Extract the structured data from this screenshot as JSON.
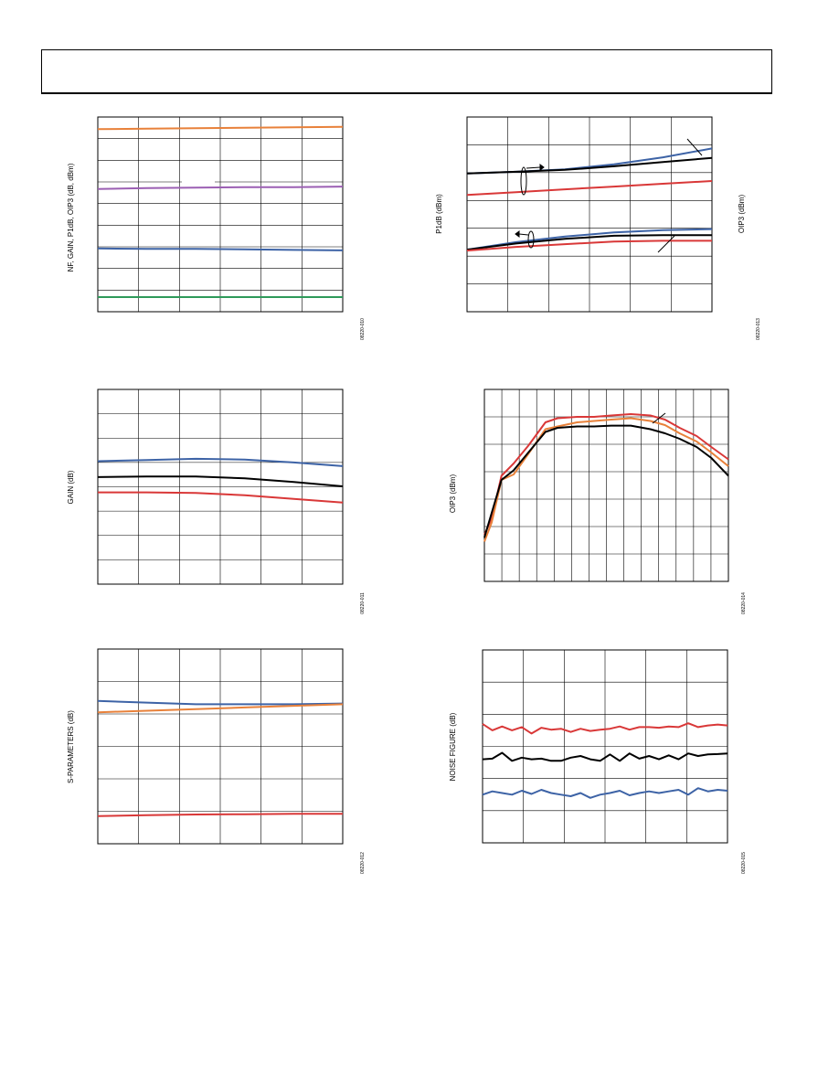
{
  "header": {
    "title": ""
  },
  "chart_data": [
    {
      "id": "c1",
      "type": "line",
      "ylabel": "NF, GAIN, P1dB, OIP3 (dB, dBm)",
      "fig_id": "08220-010",
      "xlim": [
        0,
        1
      ],
      "ylim": [
        0,
        40
      ],
      "series": [
        {
          "color": "#e8813a",
          "x": [
            0,
            0.2,
            0.4,
            0.6,
            0.8,
            1
          ],
          "y": [
            37.5,
            37.6,
            37.7,
            37.8,
            37.9,
            38.0
          ]
        },
        {
          "color": "#9b5fb3",
          "x": [
            0,
            0.2,
            0.4,
            0.6,
            0.8,
            1
          ],
          "y": [
            25.2,
            25.4,
            25.5,
            25.6,
            25.6,
            25.7
          ]
        },
        {
          "color": "#3d63a6",
          "x": [
            0,
            0.2,
            0.4,
            0.6,
            0.8,
            1
          ],
          "y": [
            13.0,
            12.9,
            12.9,
            12.8,
            12.7,
            12.6
          ]
        },
        {
          "color": "#2e9a5a",
          "x": [
            0,
            0.2,
            0.4,
            0.6,
            0.8,
            1
          ],
          "y": [
            3.0,
            3.0,
            3.0,
            3.0,
            3.0,
            3.0
          ]
        }
      ]
    },
    {
      "id": "c2",
      "type": "line",
      "ylabel": "P1dB (dBm)",
      "ylabel_right": "OIP3 (dBm)",
      "fig_id": "08220-013",
      "xlim": [
        0,
        1
      ],
      "ylim": [
        0,
        7
      ],
      "series": [
        {
          "color": "#3d63a6",
          "x": [
            0,
            0.2,
            0.4,
            0.6,
            0.8,
            1
          ],
          "y": [
            4.97,
            5.03,
            5.12,
            5.3,
            5.55,
            5.87
          ]
        },
        {
          "color": "#000000",
          "x": [
            0,
            0.2,
            0.4,
            0.6,
            0.8,
            1
          ],
          "y": [
            4.97,
            5.03,
            5.1,
            5.23,
            5.38,
            5.53
          ]
        },
        {
          "color": "#d93838",
          "x": [
            0,
            0.2,
            0.4,
            0.6,
            0.8,
            1
          ],
          "y": [
            4.2,
            4.3,
            4.4,
            4.5,
            4.6,
            4.7
          ]
        },
        {
          "color": "#3d63a6",
          "x": [
            0,
            0.2,
            0.4,
            0.6,
            0.8,
            1
          ],
          "y": [
            2.23,
            2.5,
            2.7,
            2.85,
            2.93,
            2.97
          ]
        },
        {
          "color": "#000000",
          "x": [
            0,
            0.2,
            0.4,
            0.6,
            0.8,
            1
          ],
          "y": [
            2.23,
            2.45,
            2.62,
            2.73,
            2.75,
            2.75
          ]
        },
        {
          "color": "#d93838",
          "x": [
            0,
            0.2,
            0.4,
            0.6,
            0.8,
            1
          ],
          "y": [
            2.2,
            2.33,
            2.43,
            2.52,
            2.55,
            2.55
          ]
        }
      ]
    },
    {
      "id": "c3",
      "type": "line",
      "ylabel": "GAIN (dB)",
      "fig_id": "08220-011",
      "xlim": [
        0,
        1
      ],
      "ylim": [
        0,
        8
      ],
      "series": [
        {
          "color": "#3d63a6",
          "x": [
            0,
            0.2,
            0.4,
            0.6,
            0.8,
            1
          ],
          "y": [
            5.05,
            5.1,
            5.15,
            5.12,
            5.0,
            4.85
          ]
        },
        {
          "color": "#000000",
          "x": [
            0,
            0.2,
            0.4,
            0.6,
            0.8,
            1
          ],
          "y": [
            4.4,
            4.42,
            4.42,
            4.35,
            4.2,
            4.02
          ]
        },
        {
          "color": "#d93838",
          "x": [
            0,
            0.2,
            0.4,
            0.6,
            0.8,
            1
          ],
          "y": [
            3.77,
            3.77,
            3.75,
            3.65,
            3.5,
            3.35
          ]
        }
      ]
    },
    {
      "id": "c4",
      "type": "line",
      "ylabel": "OIP3 (dBm)",
      "fig_id": "08220-014",
      "xlim": [
        0,
        1
      ],
      "ylim": [
        0,
        7
      ],
      "series": [
        {
          "color": "#d93838",
          "x": [
            0,
            0.03,
            0.07,
            0.12,
            0.18,
            0.25,
            0.3,
            0.38,
            0.45,
            0.52,
            0.6,
            0.68,
            0.74,
            0.8,
            0.87,
            0.93,
            1
          ],
          "y": [
            1.7,
            2.3,
            3.85,
            4.3,
            4.95,
            5.8,
            5.95,
            6.0,
            6.0,
            6.05,
            6.1,
            6.05,
            5.9,
            5.6,
            5.3,
            4.9,
            4.45
          ]
        },
        {
          "color": "#e8813a",
          "x": [
            0,
            0.03,
            0.07,
            0.12,
            0.18,
            0.25,
            0.3,
            0.38,
            0.45,
            0.52,
            0.6,
            0.68,
            0.74,
            0.8,
            0.87,
            0.93,
            1
          ],
          "y": [
            1.45,
            2.15,
            3.7,
            3.9,
            4.65,
            5.55,
            5.65,
            5.8,
            5.85,
            5.9,
            5.95,
            5.85,
            5.7,
            5.4,
            5.1,
            4.7,
            4.2
          ]
        },
        {
          "color": "#000000",
          "x": [
            0,
            0.03,
            0.07,
            0.12,
            0.18,
            0.25,
            0.3,
            0.38,
            0.45,
            0.52,
            0.6,
            0.68,
            0.74,
            0.8,
            0.87,
            0.93,
            1
          ],
          "y": [
            1.6,
            2.5,
            3.7,
            4.05,
            4.7,
            5.45,
            5.6,
            5.65,
            5.65,
            5.68,
            5.68,
            5.55,
            5.4,
            5.2,
            4.9,
            4.5,
            3.85
          ]
        }
      ]
    },
    {
      "id": "c5",
      "type": "line",
      "ylabel": "S-PARAMETERS (dB)",
      "fig_id": "08220-012",
      "xlim": [
        0,
        1
      ],
      "ylim": [
        0,
        6
      ],
      "series": [
        {
          "color": "#3d63a6",
          "x": [
            0,
            0.2,
            0.4,
            0.6,
            0.8,
            1
          ],
          "y": [
            4.4,
            4.35,
            4.3,
            4.3,
            4.3,
            4.32
          ]
        },
        {
          "color": "#e8813a",
          "x": [
            0,
            0.2,
            0.4,
            0.6,
            0.8,
            1
          ],
          "y": [
            4.05,
            4.1,
            4.15,
            4.2,
            4.25,
            4.3
          ]
        },
        {
          "color": "#d93838",
          "x": [
            0,
            0.2,
            0.4,
            0.6,
            0.8,
            1
          ],
          "y": [
            0.85,
            0.88,
            0.9,
            0.91,
            0.92,
            0.92
          ]
        }
      ]
    },
    {
      "id": "c6",
      "type": "line",
      "ylabel": "NOISE FIGURE (dB)",
      "fig_id": "08220-015",
      "xlim": [
        0,
        1
      ],
      "ylim": [
        0,
        6
      ],
      "series": [
        {
          "color": "#d93838",
          "x": [
            0,
            0.04,
            0.08,
            0.12,
            0.16,
            0.2,
            0.24,
            0.28,
            0.32,
            0.36,
            0.4,
            0.44,
            0.48,
            0.52,
            0.56,
            0.6,
            0.64,
            0.68,
            0.72,
            0.76,
            0.8,
            0.84,
            0.88,
            0.92,
            0.96,
            1
          ],
          "y": [
            3.7,
            3.5,
            3.62,
            3.5,
            3.6,
            3.4,
            3.58,
            3.52,
            3.55,
            3.45,
            3.55,
            3.48,
            3.52,
            3.55,
            3.62,
            3.52,
            3.6,
            3.6,
            3.58,
            3.62,
            3.6,
            3.72,
            3.6,
            3.65,
            3.68,
            3.65
          ]
        },
        {
          "color": "#000000",
          "x": [
            0,
            0.04,
            0.08,
            0.12,
            0.16,
            0.2,
            0.24,
            0.28,
            0.32,
            0.36,
            0.4,
            0.44,
            0.48,
            0.52,
            0.56,
            0.6,
            0.64,
            0.68,
            0.72,
            0.76,
            0.8,
            0.84,
            0.88,
            0.92,
            0.96,
            1
          ],
          "y": [
            2.6,
            2.62,
            2.8,
            2.55,
            2.65,
            2.6,
            2.62,
            2.55,
            2.55,
            2.65,
            2.7,
            2.6,
            2.55,
            2.75,
            2.55,
            2.78,
            2.62,
            2.7,
            2.6,
            2.72,
            2.6,
            2.78,
            2.7,
            2.75,
            2.76,
            2.78
          ]
        },
        {
          "color": "#3d63a6",
          "x": [
            0,
            0.04,
            0.08,
            0.12,
            0.16,
            0.2,
            0.24,
            0.28,
            0.32,
            0.36,
            0.4,
            0.44,
            0.48,
            0.52,
            0.56,
            0.6,
            0.64,
            0.68,
            0.72,
            0.76,
            0.8,
            0.84,
            0.88,
            0.92,
            0.96,
            1
          ],
          "y": [
            1.5,
            1.6,
            1.55,
            1.5,
            1.62,
            1.52,
            1.65,
            1.55,
            1.5,
            1.45,
            1.55,
            1.4,
            1.5,
            1.55,
            1.62,
            1.48,
            1.55,
            1.6,
            1.55,
            1.6,
            1.65,
            1.5,
            1.7,
            1.6,
            1.65,
            1.62
          ]
        }
      ]
    }
  ]
}
